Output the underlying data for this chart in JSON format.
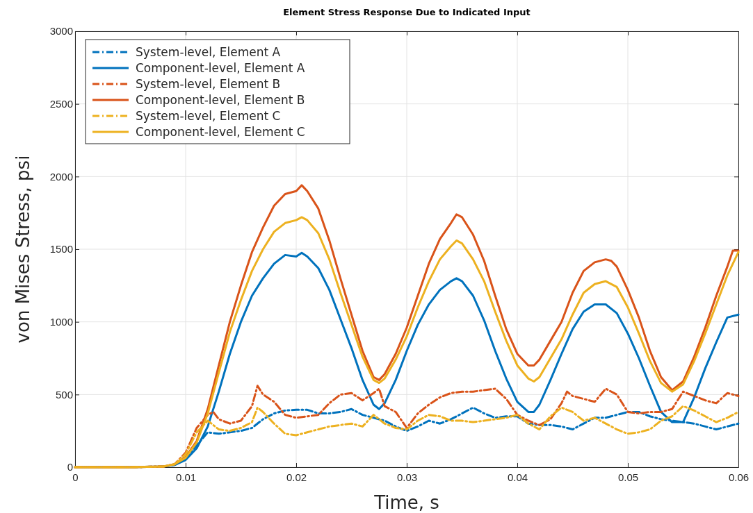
{
  "chart_data": {
    "type": "line",
    "title": "Element Stress Response Due to Indicated Input",
    "xlabel": "Time, s",
    "ylabel": "von Mises Stress, psi",
    "xlim": [
      0,
      0.06
    ],
    "xticks": [
      0,
      0.01,
      0.02,
      0.03,
      0.04,
      0.05,
      0.06
    ],
    "ylim": [
      0,
      3000
    ],
    "yticks": [
      0,
      500,
      1000,
      1500,
      2000,
      2500,
      3000
    ],
    "grid": true,
    "legend": "top left",
    "marker": "none",
    "series": [
      {
        "name": "System-level, Element A",
        "color": "#0072bd",
        "line_style": "dashed",
        "x": [
          0,
          0.005,
          0.008,
          0.009,
          0.01,
          0.011,
          0.012,
          0.013,
          0.014,
          0.015,
          0.016,
          0.017,
          0.018,
          0.019,
          0.02,
          0.021,
          0.022,
          0.023,
          0.024,
          0.025,
          0.026,
          0.027,
          0.028,
          0.029,
          0.03,
          0.031,
          0.032,
          0.033,
          0.034,
          0.035,
          0.036,
          0.037,
          0.038,
          0.039,
          0.04,
          0.041,
          0.042,
          0.043,
          0.044,
          0.045,
          0.046,
          0.047,
          0.048,
          0.049,
          0.05,
          0.051,
          0.052,
          0.053,
          0.054,
          0.055,
          0.056,
          0.057,
          0.058,
          0.059,
          0.06
        ],
        "values": [
          0,
          0,
          5,
          15,
          60,
          150,
          240,
          230,
          240,
          250,
          270,
          330,
          370,
          390,
          395,
          395,
          370,
          370,
          380,
          400,
          360,
          340,
          320,
          280,
          250,
          280,
          320,
          300,
          330,
          370,
          410,
          370,
          340,
          350,
          350,
          300,
          290,
          290,
          280,
          260,
          300,
          340,
          340,
          360,
          380,
          380,
          350,
          330,
          320,
          310,
          300,
          280,
          260,
          280,
          300
        ]
      },
      {
        "name": "Component-level, Element A",
        "color": "#0072bd",
        "line_style": "solid",
        "x": [
          0,
          0.005,
          0.008,
          0.009,
          0.01,
          0.011,
          0.012,
          0.013,
          0.014,
          0.015,
          0.016,
          0.017,
          0.018,
          0.019,
          0.02,
          0.0205,
          0.021,
          0.022,
          0.023,
          0.024,
          0.025,
          0.026,
          0.027,
          0.0275,
          0.028,
          0.029,
          0.03,
          0.031,
          0.032,
          0.033,
          0.034,
          0.0345,
          0.035,
          0.036,
          0.037,
          0.038,
          0.039,
          0.04,
          0.041,
          0.0415,
          0.042,
          0.043,
          0.044,
          0.045,
          0.046,
          0.047,
          0.048,
          0.049,
          0.05,
          0.051,
          0.052,
          0.053,
          0.054,
          0.055,
          0.056,
          0.057,
          0.058,
          0.059,
          0.06
        ],
        "values": [
          0,
          0,
          5,
          15,
          50,
          130,
          280,
          520,
          780,
          1000,
          1180,
          1300,
          1400,
          1460,
          1450,
          1475,
          1450,
          1370,
          1220,
          1020,
          820,
          600,
          430,
          400,
          440,
          600,
          800,
          980,
          1120,
          1220,
          1280,
          1300,
          1280,
          1180,
          1010,
          800,
          610,
          450,
          380,
          380,
          430,
          600,
          780,
          950,
          1070,
          1120,
          1120,
          1060,
          920,
          750,
          560,
          380,
          310,
          310,
          480,
          680,
          860,
          1030,
          1050
        ]
      },
      {
        "name": "System-level, Element B",
        "color": "#d95319",
        "line_style": "dashed",
        "x": [
          0,
          0.005,
          0.008,
          0.009,
          0.01,
          0.011,
          0.012,
          0.0125,
          0.013,
          0.014,
          0.015,
          0.016,
          0.0165,
          0.017,
          0.018,
          0.019,
          0.02,
          0.021,
          0.022,
          0.023,
          0.024,
          0.025,
          0.026,
          0.027,
          0.0275,
          0.028,
          0.029,
          0.03,
          0.031,
          0.032,
          0.033,
          0.034,
          0.035,
          0.036,
          0.037,
          0.038,
          0.039,
          0.04,
          0.041,
          0.042,
          0.043,
          0.044,
          0.0445,
          0.045,
          0.046,
          0.047,
          0.048,
          0.049,
          0.05,
          0.051,
          0.052,
          0.053,
          0.054,
          0.055,
          0.056,
          0.057,
          0.058,
          0.059,
          0.06
        ],
        "values": [
          0,
          0,
          5,
          20,
          100,
          270,
          360,
          380,
          330,
          300,
          320,
          420,
          560,
          500,
          450,
          360,
          340,
          350,
          360,
          440,
          500,
          510,
          460,
          510,
          540,
          420,
          380,
          270,
          370,
          430,
          480,
          510,
          520,
          520,
          530,
          540,
          470,
          360,
          320,
          290,
          330,
          440,
          520,
          490,
          470,
          450,
          540,
          500,
          380,
          370,
          380,
          380,
          400,
          520,
          490,
          460,
          440,
          510,
          490
        ]
      },
      {
        "name": "Component-level, Element B",
        "color": "#d95319",
        "line_style": "solid",
        "x": [
          0,
          0.005,
          0.008,
          0.009,
          0.01,
          0.011,
          0.012,
          0.013,
          0.014,
          0.015,
          0.016,
          0.017,
          0.018,
          0.019,
          0.02,
          0.0205,
          0.021,
          0.022,
          0.023,
          0.024,
          0.025,
          0.026,
          0.027,
          0.0275,
          0.028,
          0.029,
          0.03,
          0.031,
          0.032,
          0.033,
          0.034,
          0.0345,
          0.035,
          0.036,
          0.037,
          0.038,
          0.039,
          0.04,
          0.041,
          0.0415,
          0.042,
          0.043,
          0.044,
          0.045,
          0.046,
          0.047,
          0.048,
          0.0485,
          0.049,
          0.05,
          0.051,
          0.052,
          0.053,
          0.054,
          0.055,
          0.056,
          0.057,
          0.058,
          0.059,
          0.0595,
          0.06
        ],
        "values": [
          0,
          0,
          5,
          20,
          70,
          180,
          400,
          700,
          1000,
          1250,
          1480,
          1650,
          1800,
          1880,
          1900,
          1940,
          1900,
          1780,
          1560,
          1300,
          1050,
          800,
          620,
          600,
          640,
          780,
          960,
          1180,
          1400,
          1570,
          1680,
          1740,
          1720,
          1600,
          1420,
          1180,
          950,
          780,
          700,
          700,
          740,
          870,
          1000,
          1200,
          1350,
          1410,
          1430,
          1420,
          1380,
          1220,
          1030,
          800,
          620,
          530,
          590,
          760,
          960,
          1180,
          1380,
          1490,
          1490
        ]
      },
      {
        "name": "System-level, Element C",
        "color": "#edb120",
        "line_style": "dashed",
        "x": [
          0,
          0.005,
          0.008,
          0.009,
          0.01,
          0.011,
          0.012,
          0.013,
          0.014,
          0.015,
          0.016,
          0.0165,
          0.017,
          0.018,
          0.019,
          0.02,
          0.021,
          0.022,
          0.023,
          0.024,
          0.025,
          0.026,
          0.027,
          0.028,
          0.029,
          0.03,
          0.031,
          0.032,
          0.033,
          0.034,
          0.035,
          0.036,
          0.037,
          0.038,
          0.039,
          0.04,
          0.041,
          0.042,
          0.043,
          0.044,
          0.045,
          0.046,
          0.047,
          0.048,
          0.049,
          0.05,
          0.051,
          0.052,
          0.053,
          0.054,
          0.055,
          0.056,
          0.057,
          0.058,
          0.059,
          0.06
        ],
        "values": [
          0,
          0,
          5,
          20,
          90,
          240,
          320,
          260,
          250,
          270,
          310,
          410,
          380,
          300,
          230,
          220,
          240,
          260,
          280,
          290,
          300,
          280,
          360,
          300,
          270,
          260,
          320,
          360,
          350,
          320,
          320,
          310,
          320,
          330,
          340,
          360,
          300,
          260,
          350,
          410,
          380,
          320,
          340,
          300,
          260,
          230,
          240,
          260,
          320,
          350,
          420,
          390,
          350,
          310,
          340,
          380
        ]
      },
      {
        "name": "Component-level, Element C",
        "color": "#edb120",
        "line_style": "solid",
        "x": [
          0,
          0.005,
          0.008,
          0.009,
          0.01,
          0.011,
          0.012,
          0.013,
          0.014,
          0.015,
          0.016,
          0.017,
          0.018,
          0.019,
          0.02,
          0.0205,
          0.021,
          0.022,
          0.023,
          0.024,
          0.025,
          0.026,
          0.027,
          0.0275,
          0.028,
          0.029,
          0.03,
          0.031,
          0.032,
          0.033,
          0.034,
          0.0345,
          0.035,
          0.036,
          0.037,
          0.038,
          0.039,
          0.04,
          0.041,
          0.0415,
          0.042,
          0.043,
          0.044,
          0.045,
          0.046,
          0.047,
          0.048,
          0.049,
          0.05,
          0.051,
          0.052,
          0.053,
          0.054,
          0.055,
          0.056,
          0.057,
          0.058,
          0.059,
          0.06
        ],
        "values": [
          0,
          0,
          5,
          20,
          65,
          170,
          370,
          650,
          930,
          1150,
          1350,
          1500,
          1620,
          1680,
          1700,
          1720,
          1700,
          1610,
          1430,
          1200,
          980,
          760,
          600,
          580,
          610,
          740,
          900,
          1100,
          1280,
          1430,
          1520,
          1560,
          1540,
          1430,
          1280,
          1070,
          870,
          700,
          610,
          590,
          620,
          750,
          880,
          1050,
          1200,
          1260,
          1280,
          1240,
          1100,
          920,
          730,
          580,
          520,
          570,
          730,
          920,
          1120,
          1320,
          1480
        ]
      }
    ]
  }
}
